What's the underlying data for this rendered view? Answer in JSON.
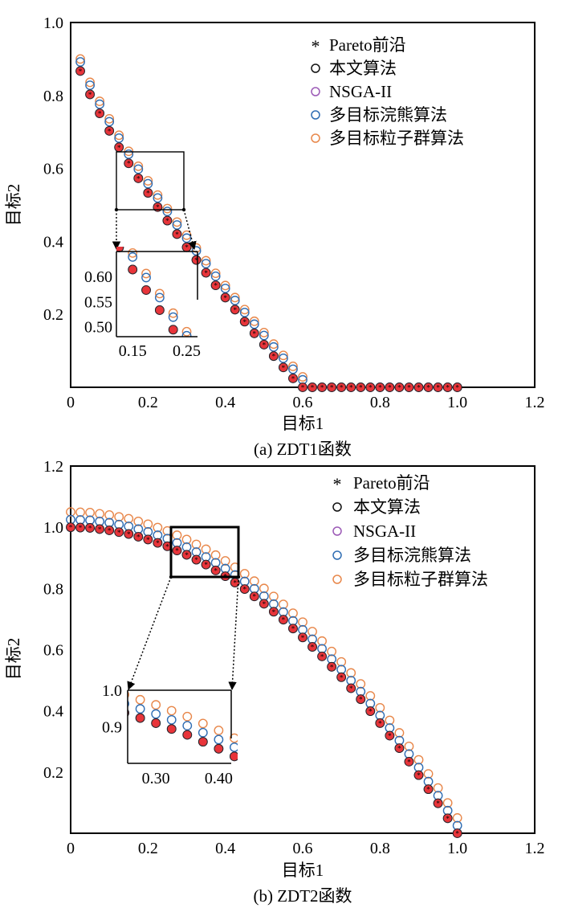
{
  "chart_data": [
    {
      "type": "scatter",
      "title": "",
      "caption": "(a) ZDT1函数",
      "xlabel": "目标1",
      "ylabel": "目标2",
      "xlim": [
        0,
        1.2
      ],
      "ylim": [
        0,
        1.0
      ],
      "xticks": [
        "0",
        "0.2",
        "0.4",
        "0.6",
        "0.8",
        "1.0",
        "1.2"
      ],
      "yticks": [
        "0.2",
        "0.4",
        "0.6",
        "0.8",
        "1.0"
      ],
      "legend_position": "top-right",
      "legend": [
        "Pareto前沿",
        "本文算法",
        "NSGA-II",
        "多目标浣熊算法",
        "多目标粒子群算法"
      ],
      "series": [
        {
          "name": "Pareto前沿",
          "x": [
            0.025,
            0.05,
            0.075,
            0.1,
            0.125,
            0.15,
            0.175,
            0.2,
            0.225,
            0.25,
            0.275,
            0.3,
            0.325,
            0.35,
            0.375,
            0.4,
            0.425,
            0.45,
            0.475,
            0.5,
            0.525,
            0.55,
            0.575,
            0.6,
            0.625,
            0.65,
            0.675,
            0.7,
            0.725,
            0.75,
            0.775,
            0.8,
            0.825,
            0.85,
            0.875,
            0.9,
            0.925,
            0.95,
            0.975,
            1.0
          ],
          "y": [
            0.867,
            0.803,
            0.751,
            0.703,
            0.658,
            0.614,
            0.573,
            0.533,
            0.494,
            0.457,
            0.42,
            0.384,
            0.349,
            0.314,
            0.2795,
            0.246,
            0.213,
            0.18,
            0.148,
            0.117,
            0.0855,
            0.0545,
            0.0245,
            0.0,
            -0.0,
            -0.0,
            -0.0,
            -0.0,
            -0.0,
            -0.0,
            -0.0,
            -0.0,
            -0.0,
            -0.0,
            -0.0,
            -0.0,
            -0.0,
            -0.0,
            -0.0,
            -0.0
          ]
        },
        {
          "name": "本文算法",
          "x": [
            0.025,
            0.05,
            0.075,
            0.1,
            0.125,
            0.15,
            0.175,
            0.2,
            0.225,
            0.25,
            0.275,
            0.3,
            0.325,
            0.35,
            0.375,
            0.4,
            0.425,
            0.45,
            0.475,
            0.5,
            0.525,
            0.55,
            0.575,
            0.6,
            0.625,
            0.65,
            0.675,
            0.7,
            0.725,
            0.75,
            0.775,
            0.8,
            0.825,
            0.85,
            0.875,
            0.9,
            0.925,
            0.95,
            0.975,
            1.0
          ],
          "y": [
            0.867,
            0.803,
            0.751,
            0.703,
            0.658,
            0.614,
            0.573,
            0.533,
            0.494,
            0.457,
            0.42,
            0.384,
            0.349,
            0.314,
            0.2795,
            0.246,
            0.213,
            0.18,
            0.148,
            0.117,
            0.0855,
            0.0545,
            0.0245,
            0.0,
            -0.0,
            -0.0,
            -0.0,
            -0.0,
            -0.0,
            -0.0,
            -0.0,
            -0.0,
            -0.0,
            -0.0,
            -0.0,
            -0.0,
            -0.0,
            -0.0,
            -0.0,
            -0.0
          ]
        },
        {
          "name": "NSGA-II",
          "x": [
            0.025,
            0.05,
            0.075,
            0.1,
            0.125,
            0.15,
            0.175,
            0.2,
            0.225,
            0.25,
            0.275,
            0.3,
            0.325,
            0.35,
            0.375,
            0.4,
            0.425,
            0.45,
            0.475,
            0.5,
            0.525,
            0.55,
            0.575,
            0.6,
            0.625,
            0.65,
            0.675,
            0.7,
            0.725,
            0.75,
            0.775,
            0.8,
            0.825,
            0.85,
            0.875,
            0.9,
            0.925,
            0.95,
            0.975,
            1.0
          ],
          "y": [
            0.867,
            0.803,
            0.751,
            0.703,
            0.658,
            0.614,
            0.573,
            0.533,
            0.494,
            0.457,
            0.42,
            0.384,
            0.349,
            0.314,
            0.2795,
            0.246,
            0.213,
            0.18,
            0.148,
            0.117,
            0.0855,
            0.0545,
            0.0245,
            0.0,
            -0.0,
            -0.0,
            -0.0,
            -0.0,
            -0.0,
            -0.0,
            -0.0,
            -0.0,
            -0.0,
            -0.0,
            -0.0,
            -0.0,
            -0.0,
            -0.0,
            -0.0,
            -0.0
          ]
        },
        {
          "name": "多目标浣熊算法",
          "x": [
            0.025,
            0.05,
            0.075,
            0.1,
            0.125,
            0.15,
            0.175,
            0.2,
            0.225,
            0.25,
            0.275,
            0.3,
            0.325,
            0.35,
            0.375,
            0.4,
            0.425,
            0.45,
            0.475,
            0.5,
            0.525,
            0.55,
            0.575,
            0.6,
            0.625,
            0.65,
            0.675,
            0.7,
            0.725,
            0.75,
            0.775,
            0.8,
            0.825,
            0.85,
            0.875,
            0.9,
            0.925,
            0.95,
            0.975,
            1.0
          ],
          "y": [
            0.892,
            0.828,
            0.776,
            0.728,
            0.683,
            0.639,
            0.598,
            0.558,
            0.519,
            0.482,
            0.445,
            0.409,
            0.374,
            0.339,
            0.3045,
            0.271,
            0.238,
            0.205,
            0.173,
            0.142,
            0.1105,
            0.0795,
            0.0495,
            0.0205,
            0.0,
            -0.0,
            -0.0,
            -0.0,
            -0.0,
            -0.0,
            -0.0,
            -0.0,
            -0.0,
            -0.0,
            -0.0,
            -0.0,
            -0.0,
            -0.0,
            -0.0,
            -0.0
          ]
        },
        {
          "name": "多目标粒子群算法",
          "x": [
            0.025,
            0.05,
            0.075,
            0.1,
            0.125,
            0.15,
            0.175,
            0.2,
            0.225,
            0.25,
            0.275,
            0.3,
            0.325,
            0.35,
            0.375,
            0.4,
            0.425,
            0.45,
            0.475,
            0.5,
            0.525,
            0.55,
            0.575,
            0.6,
            0.625,
            0.65,
            0.675,
            0.7,
            0.725,
            0.75,
            0.775,
            0.8,
            0.825,
            0.85,
            0.875,
            0.9,
            0.925,
            0.95,
            0.975,
            1.0
          ],
          "y": [
            0.9,
            0.836,
            0.784,
            0.736,
            0.691,
            0.647,
            0.606,
            0.566,
            0.527,
            0.49,
            0.453,
            0.417,
            0.382,
            0.347,
            0.3125,
            0.279,
            0.246,
            0.213,
            0.181,
            0.15,
            0.1185,
            0.0875,
            0.0575,
            0.0285,
            0.0,
            -0.0,
            -0.0,
            -0.0,
            -0.0,
            -0.0,
            -0.0,
            -0.0,
            -0.0,
            -0.0,
            -0.0,
            -0.0,
            -0.0,
            -0.0,
            -0.0,
            -0.0
          ]
        }
      ],
      "inset": {
        "xticks": [
          "0.15",
          "0.25"
        ],
        "yticks": [
          "0.60",
          "0.55",
          "0.50"
        ],
        "xlim": [
          0.12,
          0.27
        ],
        "ylim": [
          0.48,
          0.65
        ]
      }
    },
    {
      "type": "scatter",
      "title": "",
      "caption": "(b) ZDT2函数",
      "xlabel": "目标1",
      "ylabel": "目标2",
      "xlim": [
        0,
        1.2
      ],
      "ylim": [
        0,
        1.2
      ],
      "xticks": [
        "0",
        "0.2",
        "0.4",
        "0.6",
        "0.8",
        "1.0",
        "1.2"
      ],
      "yticks": [
        "0.2",
        "0.4",
        "0.6",
        "0.8",
        "1.0",
        "1.2"
      ],
      "legend_position": "top-right",
      "legend": [
        "Pareto前沿",
        "本文算法",
        "NSGA-II",
        "多目标浣熊算法",
        "多目标粒子群算法"
      ],
      "series": [
        {
          "name": "Pareto前沿",
          "x": [
            0.0,
            0.025,
            0.05,
            0.075,
            0.1,
            0.125,
            0.15,
            0.175,
            0.2,
            0.225,
            0.25,
            0.275,
            0.3,
            0.325,
            0.35,
            0.375,
            0.4,
            0.425,
            0.45,
            0.475,
            0.5,
            0.525,
            0.55,
            0.575,
            0.6,
            0.625,
            0.65,
            0.675,
            0.7,
            0.725,
            0.75,
            0.775,
            0.8,
            0.825,
            0.85,
            0.875,
            0.9,
            0.925,
            0.95,
            0.975,
            1.0
          ],
          "y": [
            1.0,
            0.999,
            0.998,
            0.994,
            0.99,
            0.984,
            0.978,
            0.969,
            0.96,
            0.949,
            0.938,
            0.924,
            0.91,
            0.894,
            0.878,
            0.859,
            0.84,
            0.819,
            0.798,
            0.774,
            0.75,
            0.724,
            0.698,
            0.669,
            0.64,
            0.609,
            0.578,
            0.544,
            0.51,
            0.474,
            0.438,
            0.399,
            0.36,
            0.319,
            0.278,
            0.234,
            0.19,
            0.144,
            0.098,
            0.049,
            0.0
          ]
        },
        {
          "name": "本文算法",
          "x": [
            0.0,
            0.025,
            0.05,
            0.075,
            0.1,
            0.125,
            0.15,
            0.175,
            0.2,
            0.225,
            0.25,
            0.275,
            0.3,
            0.325,
            0.35,
            0.375,
            0.4,
            0.425,
            0.45,
            0.475,
            0.5,
            0.525,
            0.55,
            0.575,
            0.6,
            0.625,
            0.65,
            0.675,
            0.7,
            0.725,
            0.75,
            0.775,
            0.8,
            0.825,
            0.85,
            0.875,
            0.9,
            0.925,
            0.95,
            0.975,
            1.0
          ],
          "y": [
            1.0,
            0.999,
            0.998,
            0.994,
            0.99,
            0.984,
            0.978,
            0.969,
            0.96,
            0.949,
            0.938,
            0.924,
            0.91,
            0.894,
            0.878,
            0.859,
            0.84,
            0.819,
            0.798,
            0.774,
            0.75,
            0.724,
            0.698,
            0.669,
            0.64,
            0.609,
            0.578,
            0.544,
            0.51,
            0.474,
            0.438,
            0.399,
            0.36,
            0.319,
            0.278,
            0.234,
            0.19,
            0.144,
            0.098,
            0.049,
            0.0
          ]
        },
        {
          "name": "NSGA-II",
          "x": [
            0.0,
            0.025,
            0.05,
            0.075,
            0.1,
            0.125,
            0.15,
            0.175,
            0.2,
            0.225,
            0.25,
            0.275,
            0.3,
            0.325,
            0.35,
            0.375,
            0.4,
            0.425,
            0.45,
            0.475,
            0.5,
            0.525,
            0.55,
            0.575,
            0.6,
            0.625,
            0.65,
            0.675,
            0.7,
            0.725,
            0.75,
            0.775,
            0.8,
            0.825,
            0.85,
            0.875,
            0.9,
            0.925,
            0.95,
            0.975,
            1.0
          ],
          "y": [
            1.0,
            0.999,
            0.998,
            0.994,
            0.99,
            0.984,
            0.978,
            0.969,
            0.96,
            0.949,
            0.938,
            0.924,
            0.91,
            0.894,
            0.878,
            0.859,
            0.84,
            0.819,
            0.798,
            0.774,
            0.75,
            0.724,
            0.698,
            0.669,
            0.64,
            0.609,
            0.578,
            0.544,
            0.51,
            0.474,
            0.438,
            0.399,
            0.36,
            0.319,
            0.278,
            0.234,
            0.19,
            0.144,
            0.098,
            0.049,
            0.0
          ]
        },
        {
          "name": "多目标浣熊算法",
          "x": [
            0.0,
            0.025,
            0.05,
            0.075,
            0.1,
            0.125,
            0.15,
            0.175,
            0.2,
            0.225,
            0.25,
            0.275,
            0.3,
            0.325,
            0.35,
            0.375,
            0.4,
            0.425,
            0.45,
            0.475,
            0.5,
            0.525,
            0.55,
            0.575,
            0.6,
            0.625,
            0.65,
            0.675,
            0.7,
            0.725,
            0.75,
            0.775,
            0.8,
            0.825,
            0.85,
            0.875,
            0.9,
            0.925,
            0.95,
            0.975,
            1.0
          ],
          "y": [
            1.025,
            1.024,
            1.023,
            1.019,
            1.015,
            1.009,
            1.003,
            0.994,
            0.985,
            0.974,
            0.963,
            0.949,
            0.935,
            0.919,
            0.903,
            0.884,
            0.865,
            0.844,
            0.823,
            0.799,
            0.775,
            0.749,
            0.723,
            0.694,
            0.665,
            0.634,
            0.603,
            0.569,
            0.535,
            0.499,
            0.463,
            0.424,
            0.385,
            0.344,
            0.303,
            0.259,
            0.215,
            0.169,
            0.123,
            0.074,
            0.025
          ]
        },
        {
          "name": "多目标粒子群算法",
          "x": [
            0.0,
            0.025,
            0.05,
            0.075,
            0.1,
            0.125,
            0.15,
            0.175,
            0.2,
            0.225,
            0.25,
            0.275,
            0.3,
            0.325,
            0.35,
            0.375,
            0.4,
            0.425,
            0.45,
            0.475,
            0.5,
            0.525,
            0.55,
            0.575,
            0.6,
            0.625,
            0.65,
            0.675,
            0.7,
            0.725,
            0.75,
            0.775,
            0.8,
            0.825,
            0.85,
            0.875,
            0.9,
            0.925,
            0.95,
            0.975,
            1.0
          ],
          "y": [
            1.05,
            1.049,
            1.048,
            1.044,
            1.04,
            1.034,
            1.028,
            1.019,
            1.01,
            0.999,
            0.988,
            0.974,
            0.96,
            0.944,
            0.928,
            0.909,
            0.89,
            0.869,
            0.848,
            0.824,
            0.8,
            0.774,
            0.748,
            0.719,
            0.69,
            0.659,
            0.628,
            0.594,
            0.56,
            0.524,
            0.488,
            0.449,
            0.41,
            0.369,
            0.328,
            0.284,
            0.24,
            0.194,
            0.148,
            0.099,
            0.05
          ]
        }
      ],
      "inset": {
        "xticks": [
          "0.30",
          "0.40"
        ],
        "yticks": [
          "1.0",
          "0.9"
        ],
        "xlim": [
          0.255,
          0.42
        ],
        "ylim": [
          0.8,
          1.0
        ]
      }
    }
  ],
  "colors": {
    "pareto": "#e8343a",
    "ours": "#111111",
    "nsga": "#9b59b6",
    "coati": "#2f6db3",
    "pso": "#e8874a"
  }
}
